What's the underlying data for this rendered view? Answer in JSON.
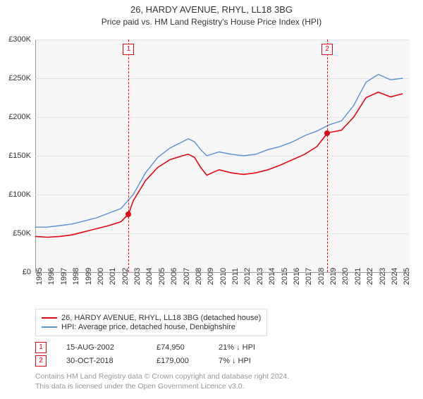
{
  "title": "26, HARDY AVENUE, RHYL, LL18 3BG",
  "subtitle": "Price paid vs. HM Land Registry's House Price Index (HPI)",
  "chart": {
    "type": "line",
    "background_color": "#f7f7f7",
    "grid_color": "#e5e5e5",
    "axis_color": "#999999",
    "xlim": [
      1995,
      2025.5
    ],
    "ylim": [
      0,
      300000
    ],
    "ytick_step": 50000,
    "yticks": [
      "£0",
      "£50K",
      "£100K",
      "£150K",
      "£200K",
      "£250K",
      "£300K"
    ],
    "xticks": [
      1995,
      1996,
      1997,
      1998,
      1999,
      2000,
      2001,
      2002,
      2003,
      2004,
      2005,
      2006,
      2007,
      2008,
      2009,
      2010,
      2011,
      2012,
      2013,
      2014,
      2015,
      2016,
      2017,
      2018,
      2019,
      2020,
      2021,
      2022,
      2023,
      2024,
      2025
    ],
    "label_fontsize": 11,
    "series": [
      {
        "name": "property",
        "label": "26, HARDY AVENUE, RHYL, LL18 3BG (detached house)",
        "color": "#e30613",
        "line_width": 1.6,
        "data": [
          [
            1995,
            46000
          ],
          [
            1996,
            45000
          ],
          [
            1997,
            46000
          ],
          [
            1998,
            48000
          ],
          [
            1999,
            52000
          ],
          [
            2000,
            56000
          ],
          [
            2001,
            60000
          ],
          [
            2002,
            65000
          ],
          [
            2002.62,
            74950
          ],
          [
            2003,
            92000
          ],
          [
            2004,
            118000
          ],
          [
            2005,
            135000
          ],
          [
            2006,
            145000
          ],
          [
            2007,
            150000
          ],
          [
            2007.5,
            152000
          ],
          [
            2008,
            148000
          ],
          [
            2008.5,
            135000
          ],
          [
            2009,
            125000
          ],
          [
            2010,
            132000
          ],
          [
            2011,
            128000
          ],
          [
            2012,
            126000
          ],
          [
            2013,
            128000
          ],
          [
            2014,
            132000
          ],
          [
            2015,
            138000
          ],
          [
            2016,
            145000
          ],
          [
            2017,
            152000
          ],
          [
            2018,
            162000
          ],
          [
            2018.83,
            179000
          ],
          [
            2019,
            180000
          ],
          [
            2020,
            183000
          ],
          [
            2021,
            200000
          ],
          [
            2022,
            225000
          ],
          [
            2023,
            232000
          ],
          [
            2024,
            226000
          ],
          [
            2025,
            230000
          ]
        ]
      },
      {
        "name": "hpi",
        "label": "HPI: Average price, detached house, Denbighshire",
        "color": "#5b8fd6",
        "line_width": 1.4,
        "data": [
          [
            1995,
            58000
          ],
          [
            1996,
            58000
          ],
          [
            1997,
            60000
          ],
          [
            1998,
            62000
          ],
          [
            1999,
            66000
          ],
          [
            2000,
            70000
          ],
          [
            2001,
            76000
          ],
          [
            2002,
            82000
          ],
          [
            2003,
            100000
          ],
          [
            2004,
            128000
          ],
          [
            2005,
            148000
          ],
          [
            2006,
            160000
          ],
          [
            2007,
            168000
          ],
          [
            2007.5,
            172000
          ],
          [
            2008,
            168000
          ],
          [
            2008.5,
            158000
          ],
          [
            2009,
            150000
          ],
          [
            2010,
            155000
          ],
          [
            2011,
            152000
          ],
          [
            2012,
            150000
          ],
          [
            2013,
            152000
          ],
          [
            2014,
            158000
          ],
          [
            2015,
            162000
          ],
          [
            2016,
            168000
          ],
          [
            2017,
            176000
          ],
          [
            2018,
            182000
          ],
          [
            2019,
            190000
          ],
          [
            2020,
            195000
          ],
          [
            2021,
            215000
          ],
          [
            2022,
            245000
          ],
          [
            2023,
            255000
          ],
          [
            2024,
            248000
          ],
          [
            2025,
            250000
          ]
        ]
      }
    ],
    "sale_markers": [
      {
        "num": "1",
        "year": 2002.62,
        "color": "#e30613"
      },
      {
        "num": "2",
        "year": 2018.83,
        "color": "#e30613"
      }
    ],
    "sale_dots": [
      {
        "year": 2002.62,
        "value": 74950,
        "color": "#e30613"
      },
      {
        "year": 2018.83,
        "value": 179000,
        "color": "#e30613"
      }
    ]
  },
  "legend": {
    "items": [
      {
        "color": "#e30613",
        "label": "26, HARDY AVENUE, RHYL, LL18 3BG (detached house)"
      },
      {
        "color": "#5b8fd6",
        "label": "HPI: Average price, detached house, Denbighshire"
      }
    ]
  },
  "sales": [
    {
      "num": "1",
      "color": "#e30613",
      "date": "15-AUG-2002",
      "price": "£74,950",
      "diff": "21% ↓ HPI"
    },
    {
      "num": "2",
      "color": "#e30613",
      "date": "30-OCT-2018",
      "price": "£179,000",
      "diff": "7% ↓ HPI"
    }
  ],
  "footnote_line1": "Contains HM Land Registry data © Crown copyright and database right 2024.",
  "footnote_line2": "This data is licensed under the Open Government Licence v3.0."
}
